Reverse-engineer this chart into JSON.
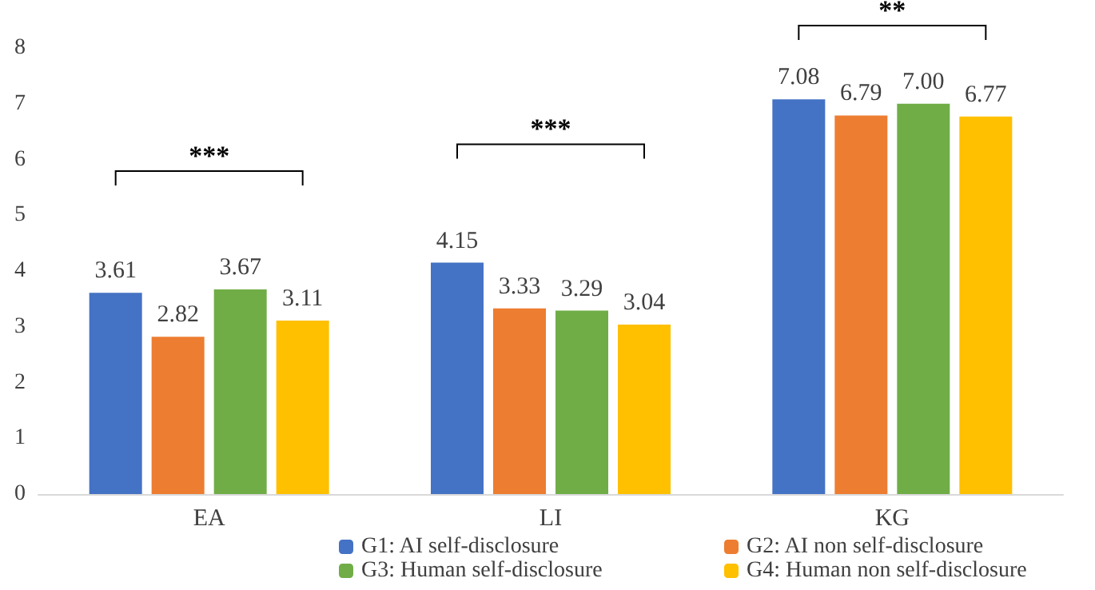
{
  "chart_data": {
    "type": "bar",
    "categories": [
      "EA",
      "LI",
      "KG"
    ],
    "series": [
      {
        "name": "G1: AI self-disclosure",
        "color": "#4472c4",
        "values": [
          3.61,
          4.15,
          7.08
        ],
        "value_labels": [
          "3.61",
          "4.15",
          "7.08"
        ]
      },
      {
        "name": "G2: AI non self-disclosure",
        "color": "#ed7d31",
        "values": [
          2.82,
          3.33,
          6.79
        ],
        "value_labels": [
          "2.82",
          "3.33",
          "6.79"
        ]
      },
      {
        "name": "G3: Human self-disclosure",
        "color": "#70ad47",
        "values": [
          3.67,
          3.29,
          7.0
        ],
        "value_labels": [
          "3.67",
          "3.29",
          "7.00"
        ]
      },
      {
        "name": "G4: Human non self-disclosure",
        "color": "#ffc000",
        "values": [
          3.11,
          3.04,
          6.77
        ],
        "value_labels": [
          "3.11",
          "3.04",
          "6.77"
        ]
      }
    ],
    "ylim": [
      0,
      8
    ],
    "yticks": [
      0,
      1,
      2,
      3,
      4,
      5,
      6,
      7,
      8
    ],
    "grid": false,
    "legend": "bottom",
    "annotations": [
      "***",
      "***",
      "**"
    ]
  }
}
